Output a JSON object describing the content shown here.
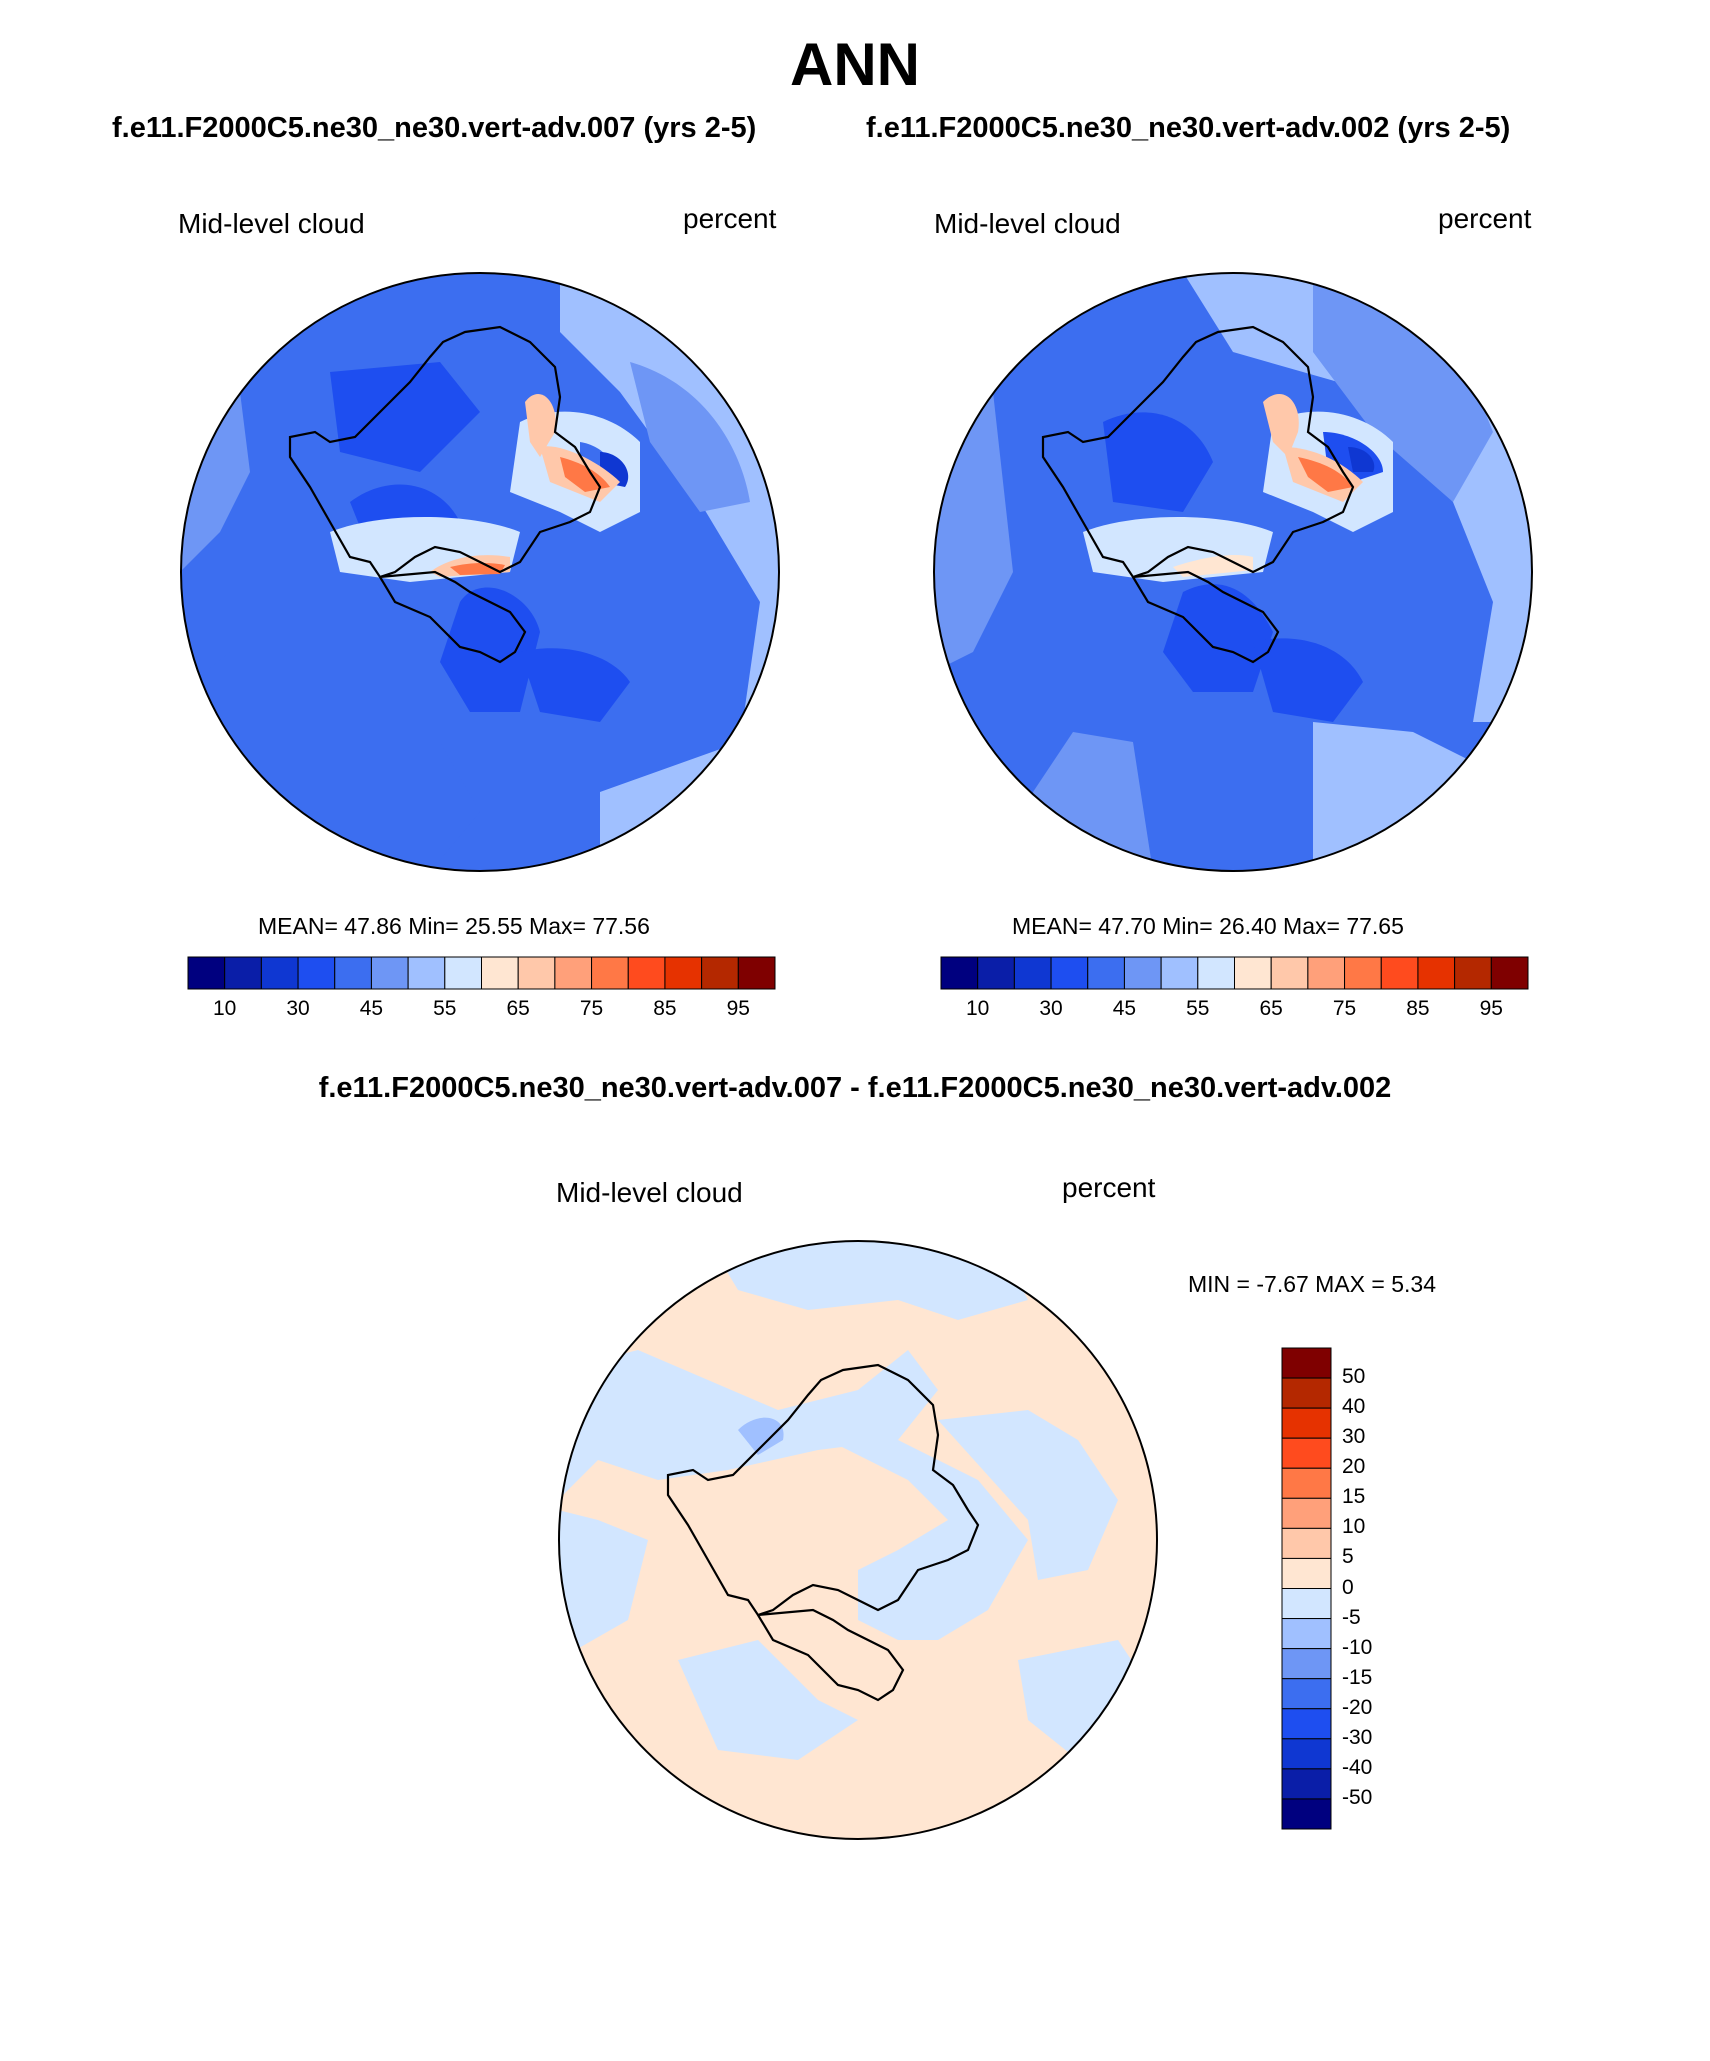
{
  "title": "ANN",
  "left_title": "f.e11.F2000C5.ne30_ne30.vert-adv.007 (yrs 2-5)",
  "right_title": "f.e11.F2000C5.ne30_ne30.vert-adv.002 (yrs 2-5)",
  "diff_title": "f.e11.F2000C5.ne30_ne30.vert-adv.007 - f.e11.F2000C5.ne30_ne30.vert-adv.002",
  "panels": {
    "left": {
      "var": "Mid-level cloud",
      "units": "percent",
      "stats": "MEAN=  47.86  Min=  25.55  Max=  77.56"
    },
    "right": {
      "var": "Mid-level cloud",
      "units": "percent",
      "stats": "MEAN=  47.70  Min=  26.40  Max=  77.65"
    },
    "diff": {
      "var": "Mid-level cloud",
      "units": "percent",
      "stats": "MIN =  -7.67 MAX =   5.34"
    }
  },
  "colorbar_main": {
    "labels": [
      "10",
      "30",
      "45",
      "55",
      "65",
      "75",
      "85",
      "95"
    ],
    "colors": [
      "#00007f",
      "#0a1ea8",
      "#0f37d2",
      "#1e4ef0",
      "#3c6ef0",
      "#6e96f5",
      "#a0c0ff",
      "#d2e6ff",
      "#ffe6d2",
      "#ffc8aa",
      "#ffa07a",
      "#ff7846",
      "#ff4b1e",
      "#e63200",
      "#b42800",
      "#7f0000"
    ]
  },
  "colorbar_diff": {
    "labels": [
      "50",
      "40",
      "30",
      "20",
      "15",
      "10",
      "5",
      "0",
      "-5",
      "-10",
      "-15",
      "-20",
      "-30",
      "-40",
      "-50"
    ],
    "colors": [
      "#7f0000",
      "#b42800",
      "#e63200",
      "#ff4b1e",
      "#ff7846",
      "#ffa07a",
      "#ffc8aa",
      "#ffe6d2",
      "#d2e6ff",
      "#a0c0ff",
      "#6e96f5",
      "#3c6ef0",
      "#1e4ef0",
      "#0f37d2",
      "#0a1ea8",
      "#00007f"
    ]
  }
}
